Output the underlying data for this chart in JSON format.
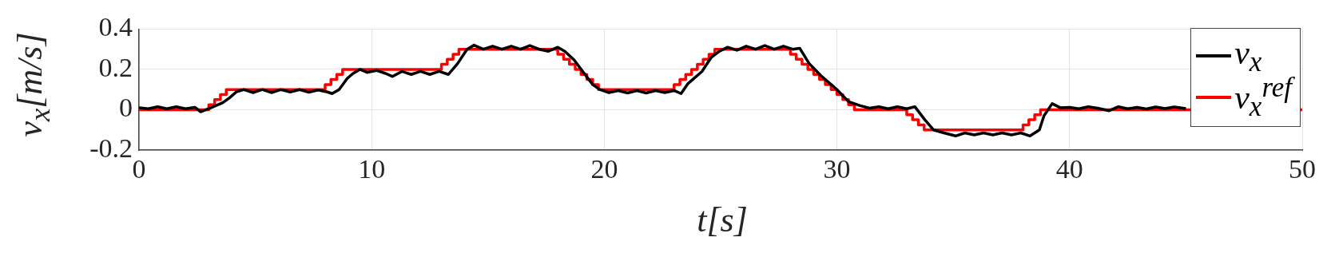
{
  "chart_data": {
    "type": "line",
    "xlabel": "t[s]",
    "ylabel": "v$_{x}$[m/s]",
    "xlim": [
      0,
      50
    ],
    "xticks": [
      0,
      10,
      20,
      30,
      40,
      50
    ],
    "ylim": [
      -0.2,
      0.4
    ],
    "yticks": [
      -0.2,
      0,
      0.2,
      0.4
    ],
    "grid": true,
    "legend": "top right",
    "series": [
      {
        "name": "v$_{x}$",
        "color": "#000000",
        "type": "line",
        "x": [
          0,
          0.4,
          0.8,
          1.2,
          1.6,
          2.0,
          2.4,
          2.65,
          3.0,
          3.3,
          3.6,
          3.9,
          4.2,
          4.5,
          4.9,
          5.3,
          5.7,
          6.1,
          6.5,
          6.9,
          7.3,
          7.7,
          8.1,
          8.3,
          8.6,
          8.95,
          9.2,
          9.5,
          9.8,
          10.2,
          10.6,
          10.9,
          11.3,
          11.7,
          12.1,
          12.5,
          12.9,
          13.3,
          13.7,
          14.1,
          14.4,
          14.8,
          15.2,
          15.6,
          16.0,
          16.4,
          16.8,
          17.2,
          17.6,
          18.0,
          18.3,
          18.7,
          19.2,
          19.5,
          19.8,
          20.2,
          20.6,
          21.0,
          21.4,
          21.8,
          22.2,
          22.6,
          23.0,
          23.3,
          23.6,
          24.2,
          24.6,
          24.95,
          25.3,
          25.7,
          26.1,
          26.5,
          26.9,
          27.3,
          27.7,
          28.1,
          28.4,
          28.8,
          29.3,
          29.7,
          30.0,
          30.5,
          31.0,
          31.4,
          31.8,
          32.2,
          32.6,
          33.0,
          33.35,
          33.78,
          34.15,
          34.6,
          35.1,
          35.5,
          35.9,
          36.3,
          36.7,
          37.1,
          37.5,
          37.9,
          38.3,
          38.7,
          38.9,
          39.25,
          39.6,
          40.0,
          40.4,
          40.8,
          41.2,
          41.7,
          42.1,
          42.5,
          42.9,
          43.3,
          43.7,
          44.1,
          44.5,
          45.0
        ],
        "values": [
          0.01,
          0.005,
          0.015,
          0.005,
          0.015,
          0.005,
          0.012,
          -0.01,
          0.005,
          0.02,
          0.035,
          0.06,
          0.09,
          0.1,
          0.085,
          0.1,
          0.085,
          0.1,
          0.088,
          0.1,
          0.087,
          0.098,
          0.088,
          0.08,
          0.1,
          0.155,
          0.18,
          0.2,
          0.185,
          0.195,
          0.18,
          0.165,
          0.19,
          0.175,
          0.19,
          0.175,
          0.19,
          0.175,
          0.23,
          0.3,
          0.32,
          0.3,
          0.315,
          0.3,
          0.315,
          0.3,
          0.318,
          0.3,
          0.29,
          0.31,
          0.29,
          0.247,
          0.17,
          0.125,
          0.1,
          0.085,
          0.095,
          0.083,
          0.095,
          0.083,
          0.095,
          0.085,
          0.095,
          0.08,
          0.13,
          0.19,
          0.26,
          0.29,
          0.31,
          0.295,
          0.315,
          0.3,
          0.318,
          0.3,
          0.315,
          0.3,
          0.305,
          0.23,
          0.17,
          0.13,
          0.1,
          0.04,
          0.02,
          0.008,
          0.015,
          0.005,
          0.015,
          0.005,
          0.015,
          -0.05,
          -0.1,
          -0.115,
          -0.13,
          -0.115,
          -0.125,
          -0.115,
          -0.125,
          -0.115,
          -0.125,
          -0.115,
          -0.13,
          -0.1,
          -0.03,
          0.03,
          0.01,
          0.012,
          0.005,
          0.015,
          0.008,
          -0.005,
          0.015,
          0.005,
          0.012,
          0.004,
          0.014,
          0.006,
          0.014,
          0.006
        ]
      },
      {
        "name": "v$_{x}$$^{ref}$",
        "color": "#ff0000",
        "type": "step",
        "x": [
          0,
          3.0,
          3.25,
          3.5,
          3.75,
          8.0,
          8.25,
          8.5,
          8.75,
          13.0,
          13.25,
          13.5,
          13.75,
          18.0,
          18.25,
          18.5,
          18.75,
          19.0,
          19.25,
          19.5,
          19.75,
          23.0,
          23.25,
          23.5,
          23.75,
          24.0,
          24.25,
          24.5,
          24.75,
          28.0,
          28.25,
          28.5,
          28.75,
          29.0,
          29.25,
          29.5,
          29.75,
          30.0,
          30.25,
          30.5,
          30.75,
          33.0,
          33.25,
          33.5,
          33.75,
          38.0,
          38.25,
          38.5,
          38.75,
          50
        ],
        "values": [
          0,
          0.025,
          0.05,
          0.075,
          0.1,
          0.125,
          0.15,
          0.175,
          0.2,
          0.225,
          0.25,
          0.275,
          0.3,
          0.275,
          0.25,
          0.225,
          0.2,
          0.175,
          0.15,
          0.125,
          0.1,
          0.125,
          0.15,
          0.175,
          0.2,
          0.225,
          0.25,
          0.275,
          0.3,
          0.275,
          0.25,
          0.225,
          0.2,
          0.175,
          0.15,
          0.125,
          0.1,
          0.075,
          0.05,
          0.025,
          0,
          -0.025,
          -0.05,
          -0.075,
          -0.1,
          -0.075,
          -0.05,
          -0.025,
          0,
          0
        ]
      }
    ]
  }
}
